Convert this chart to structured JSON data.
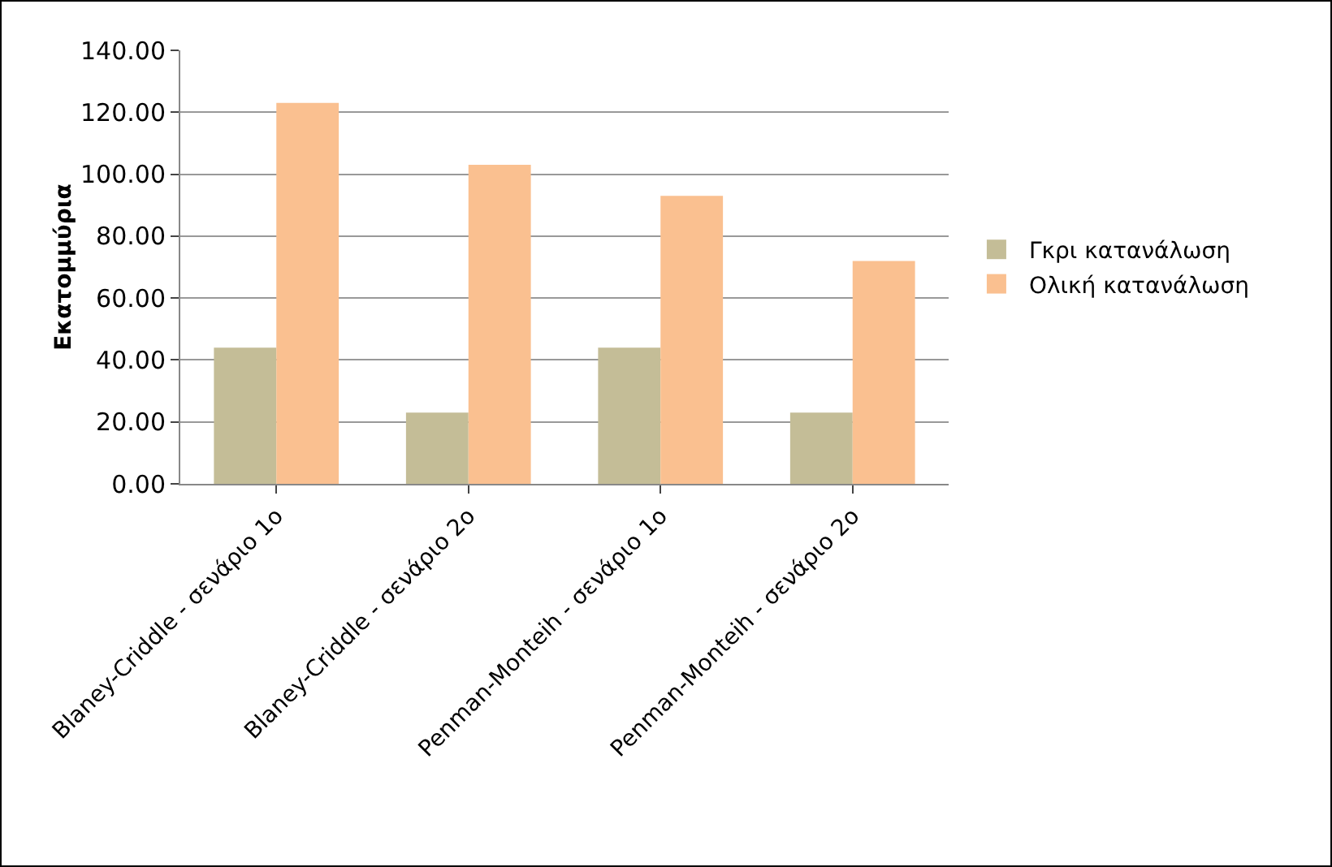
{
  "chart_data": {
    "type": "bar",
    "ylabel": "Εκατομμύρια",
    "categories": [
      "Blaney-Criddle - σενάριο 1ο",
      "Blaney-Criddle - σενάριο 2ο",
      "Penman-Monteih - σενάριο 1ο",
      "Penman-Monteih - σενάριο 2ο"
    ],
    "series": [
      {
        "name": "Γκρι κατανάλωση",
        "color": "#c4bd97",
        "values": [
          44,
          23,
          44,
          23
        ]
      },
      {
        "name": "Ολική κατανάλωση",
        "color": "#fac090",
        "values": [
          123,
          103,
          93,
          72
        ]
      }
    ],
    "ylim": [
      0,
      140
    ],
    "yticks": [
      {
        "value": 0,
        "label": "0.00"
      },
      {
        "value": 20,
        "label": "20.00"
      },
      {
        "value": 40,
        "label": "40.00"
      },
      {
        "value": 60,
        "label": "60.00"
      },
      {
        "value": 80,
        "label": "80.00"
      },
      {
        "value": 100,
        "label": "100.00"
      },
      {
        "value": 120,
        "label": "120.00"
      },
      {
        "value": 140,
        "label": "140.00"
      }
    ],
    "grid": "y",
    "legend": "right"
  }
}
